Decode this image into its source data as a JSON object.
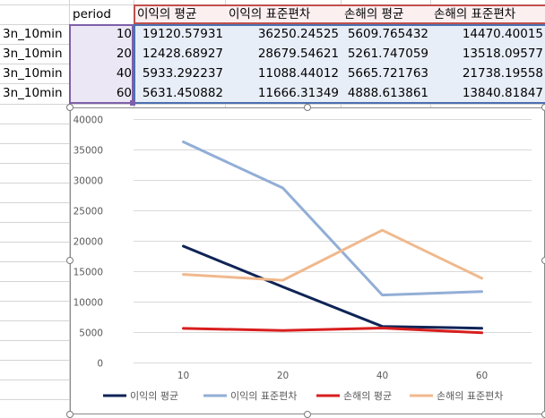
{
  "sheet": {
    "header_row": {
      "period": "period",
      "cols": [
        "이익의 평균",
        "이익의 표준편차",
        "손해의 평균",
        "손해의 표준편차"
      ]
    },
    "rows": [
      {
        "label": "3n_10min",
        "period": "10",
        "v": [
          "19120.57931",
          "36250.24525",
          "5609.765432",
          "14470.40015"
        ]
      },
      {
        "label": "3n_10min",
        "period": "20",
        "v": [
          "12428.68927",
          "28679.54621",
          "5261.747059",
          "13518.09577"
        ]
      },
      {
        "label": "3n_10min",
        "period": "40",
        "v": [
          "5933.292237",
          "11088.44012",
          "5665.721763",
          "21738.19558"
        ]
      },
      {
        "label": "3n_10min",
        "period": "60",
        "v": [
          "5631.450882",
          "11666.31349",
          "4888.613861",
          "13840.81847"
        ]
      }
    ]
  },
  "chart_data": {
    "type": "line",
    "categories": [
      "10",
      "20",
      "40",
      "60"
    ],
    "ylim": [
      0,
      40000
    ],
    "yticks": [
      "0",
      "5000",
      "10000",
      "15000",
      "20000",
      "25000",
      "30000",
      "35000",
      "40000"
    ],
    "grid": "horizontal",
    "legend_position": "bottom",
    "series": [
      {
        "name": "이익의 평균",
        "color": "#0f2456",
        "values": [
          19120.57931,
          12428.68927,
          5933.292237,
          5631.450882
        ]
      },
      {
        "name": "이익의 표준편차",
        "color": "#92aed6",
        "values": [
          36250.24525,
          28679.54621,
          11088.44012,
          11666.31349
        ]
      },
      {
        "name": "손해의 평균",
        "color": "#d81e1e",
        "values": [
          5609.765432,
          5261.747059,
          5665.721763,
          4888.613861
        ]
      },
      {
        "name": "손해의 표준편차",
        "color": "#f0b98d",
        "values": [
          14470.40015,
          13518.09577,
          21738.19558,
          13840.81847
        ]
      }
    ]
  }
}
